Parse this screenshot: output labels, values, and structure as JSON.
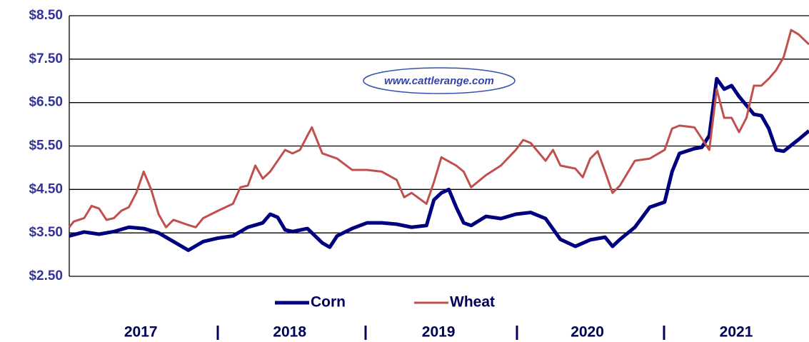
{
  "chart_data": {
    "type": "line",
    "watermark": "www.cattlerange.com",
    "xlim": [
      2017,
      2021.97
    ],
    "xticks": [
      {
        "value": 2017.5,
        "label": "2017"
      },
      {
        "value": 2018.5,
        "label": "2018"
      },
      {
        "value": 2019.5,
        "label": "2019"
      },
      {
        "value": 2020.5,
        "label": "2020"
      },
      {
        "value": 2021.5,
        "label": "2021"
      }
    ],
    "ylim": [
      2.5,
      8.5
    ],
    "yticks": [
      {
        "value": 2.5,
        "label": "$2.50"
      },
      {
        "value": 3.5,
        "label": "$3.50"
      },
      {
        "value": 4.5,
        "label": "$4.50"
      },
      {
        "value": 5.5,
        "label": "$5.50"
      },
      {
        "value": 6.5,
        "label": "$6.50"
      },
      {
        "value": 7.5,
        "label": "$7.50"
      },
      {
        "value": 8.5,
        "label": "$8.50"
      }
    ],
    "grid": true,
    "legend": "bottom",
    "series": [
      {
        "name": "Corn",
        "color": "#00007f",
        "x": [
          2017.0,
          2017.1,
          2017.2,
          2017.3,
          2017.4,
          2017.5,
          2017.6,
          2017.7,
          2017.8,
          2017.9,
          2018.0,
          2018.1,
          2018.2,
          2018.3,
          2018.35,
          2018.4,
          2018.45,
          2018.5,
          2018.6,
          2018.7,
          2018.75,
          2018.8,
          2018.9,
          2019.0,
          2019.1,
          2019.2,
          2019.3,
          2019.4,
          2019.45,
          2019.5,
          2019.55,
          2019.6,
          2019.65,
          2019.7,
          2019.8,
          2019.9,
          2020.0,
          2020.1,
          2020.2,
          2020.3,
          2020.4,
          2020.5,
          2020.6,
          2020.65,
          2020.7,
          2020.8,
          2020.9,
          2021.0,
          2021.05,
          2021.1,
          2021.2,
          2021.25,
          2021.3,
          2021.35,
          2021.4,
          2021.45,
          2021.5,
          2021.6,
          2021.65,
          2021.7,
          2021.75,
          2021.8,
          2021.9,
          2021.97
        ],
        "values": [
          3.43,
          3.52,
          3.47,
          3.53,
          3.63,
          3.6,
          3.5,
          3.3,
          3.1,
          3.3,
          3.38,
          3.43,
          3.63,
          3.73,
          3.93,
          3.86,
          3.57,
          3.53,
          3.6,
          3.27,
          3.17,
          3.43,
          3.6,
          3.73,
          3.73,
          3.7,
          3.63,
          3.67,
          4.26,
          4.42,
          4.5,
          4.09,
          3.73,
          3.67,
          3.88,
          3.83,
          3.93,
          3.97,
          3.83,
          3.35,
          3.19,
          3.34,
          3.4,
          3.19,
          3.35,
          3.63,
          4.09,
          4.21,
          4.91,
          5.33,
          5.44,
          5.47,
          5.74,
          7.05,
          6.81,
          6.89,
          6.64,
          6.23,
          6.2,
          5.9,
          5.41,
          5.38,
          5.65,
          5.85
        ]
      },
      {
        "name": "Wheat",
        "color": "#c0504d",
        "x": [
          2017.0,
          2017.03,
          2017.1,
          2017.15,
          2017.2,
          2017.25,
          2017.3,
          2017.35,
          2017.4,
          2017.45,
          2017.5,
          2017.55,
          2017.6,
          2017.65,
          2017.7,
          2017.8,
          2017.85,
          2017.9,
          2018.0,
          2018.1,
          2018.15,
          2018.2,
          2018.25,
          2018.3,
          2018.35,
          2018.4,
          2018.45,
          2018.5,
          2018.55,
          2018.6,
          2018.63,
          2018.7,
          2018.8,
          2018.9,
          2019.0,
          2019.1,
          2019.2,
          2019.25,
          2019.3,
          2019.4,
          2019.45,
          2019.5,
          2019.6,
          2019.65,
          2019.7,
          2019.8,
          2019.9,
          2020.0,
          2020.05,
          2020.1,
          2020.2,
          2020.25,
          2020.3,
          2020.4,
          2020.45,
          2020.5,
          2020.55,
          2020.6,
          2020.65,
          2020.7,
          2020.8,
          2020.9,
          2021.0,
          2021.05,
          2021.1,
          2021.2,
          2021.3,
          2021.35,
          2021.4,
          2021.45,
          2021.5,
          2021.55,
          2021.6,
          2021.65,
          2021.7,
          2021.75,
          2021.8,
          2021.85,
          2021.9,
          2021.97
        ],
        "values": [
          3.63,
          3.76,
          3.84,
          4.12,
          4.06,
          3.8,
          3.84,
          4.01,
          4.09,
          4.42,
          4.91,
          4.5,
          3.93,
          3.63,
          3.8,
          3.68,
          3.63,
          3.84,
          4.01,
          4.17,
          4.55,
          4.59,
          5.05,
          4.75,
          4.91,
          5.16,
          5.41,
          5.33,
          5.41,
          5.74,
          5.93,
          5.33,
          5.21,
          4.95,
          4.95,
          4.91,
          4.72,
          4.32,
          4.42,
          4.17,
          4.67,
          5.24,
          5.05,
          4.91,
          4.55,
          4.83,
          5.05,
          5.41,
          5.64,
          5.57,
          5.16,
          5.41,
          5.05,
          4.98,
          4.78,
          5.21,
          5.38,
          4.91,
          4.42,
          4.59,
          5.16,
          5.21,
          5.41,
          5.9,
          5.97,
          5.93,
          5.41,
          6.81,
          6.15,
          6.15,
          5.82,
          6.15,
          6.89,
          6.89,
          7.05,
          7.25,
          7.55,
          8.17,
          8.07,
          7.84
        ]
      }
    ]
  }
}
